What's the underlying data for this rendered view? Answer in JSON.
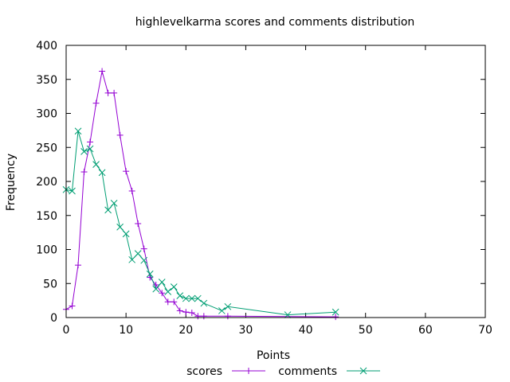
{
  "chart_data": {
    "type": "line",
    "title": "highlevelkarma scores and comments distribution",
    "xlabel": "Points",
    "ylabel": "Frequency",
    "xlim": [
      0,
      70
    ],
    "ylim": [
      0,
      400
    ],
    "xticks": [
      0,
      10,
      20,
      30,
      40,
      50,
      60,
      70
    ],
    "yticks": [
      0,
      50,
      100,
      150,
      200,
      250,
      300,
      350,
      400
    ],
    "grid": false,
    "legend_position": "bottom",
    "series": [
      {
        "name": "scores",
        "color": "#9400d3",
        "marker": "plus",
        "x": [
          0,
          1,
          2,
          3,
          4,
          5,
          6,
          7,
          8,
          9,
          10,
          11,
          12,
          13,
          14,
          15,
          16,
          17,
          18,
          19,
          20,
          21,
          22,
          23,
          27,
          45
        ],
        "y": [
          12,
          17,
          77,
          214,
          258,
          315,
          362,
          330,
          330,
          268,
          215,
          186,
          138,
          101,
          59,
          48,
          36,
          23,
          23,
          10,
          8,
          7,
          2,
          2,
          2,
          1
        ]
      },
      {
        "name": "comments",
        "color": "#009e73",
        "marker": "cross",
        "x": [
          0,
          1,
          2,
          3,
          4,
          5,
          6,
          7,
          8,
          9,
          10,
          11,
          12,
          13,
          14,
          15,
          16,
          17,
          18,
          19,
          20,
          21,
          22,
          23,
          26,
          27,
          37,
          45
        ],
        "y": [
          188,
          186,
          274,
          244,
          248,
          225,
          213,
          158,
          168,
          133,
          123,
          85,
          94,
          84,
          64,
          42,
          52,
          38,
          45,
          32,
          28,
          28,
          28,
          21,
          10,
          16,
          4,
          8
        ]
      }
    ]
  }
}
